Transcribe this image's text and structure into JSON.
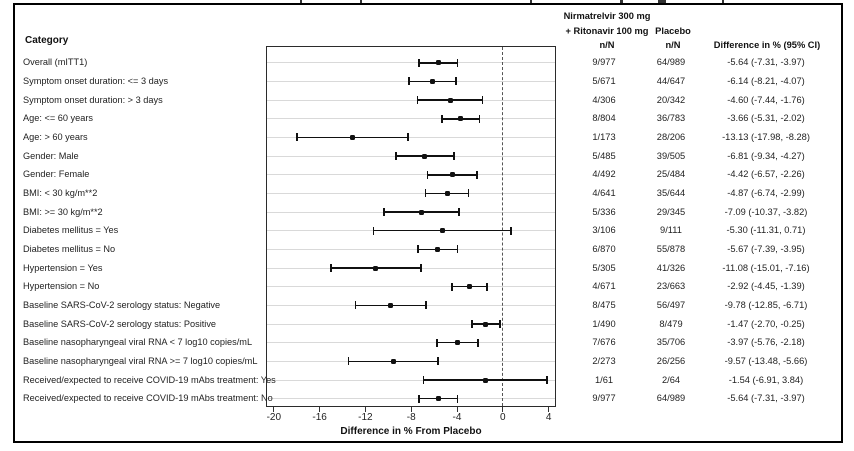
{
  "window": {
    "background": "#ffffff",
    "border_color": "#000000",
    "ink_color": "#111111"
  },
  "table": {
    "category_header": "Category",
    "treatment_header_line1": "Nirmatrelvir 300 mg",
    "treatment_header_line2": "+ Ritonavir 100 mg",
    "treatment_header_nN": "n/N",
    "placebo_header": "Placebo",
    "placebo_header_nN": "n/N",
    "difference_header": "Difference in % (95% CI)"
  },
  "chart_data": {
    "type": "forest",
    "xlabel": "Difference in % From Placebo",
    "x_ticks": [
      -20,
      -16,
      -12,
      -8,
      -4,
      0,
      4
    ],
    "xlim": [
      -20.7,
      4.7
    ],
    "reference_line_x": 0,
    "grid": "horizontal-per-row",
    "legend": "none",
    "marker_color": "#111111",
    "gridline_color": "#d9d9d9",
    "rows": [
      {
        "category": "Overall (mITT1)",
        "treatment_nN": "9/977",
        "placebo_nN": "64/989",
        "diff": -5.64,
        "ci_low": -7.31,
        "ci_high": -3.97,
        "diff_label": "-5.64 (-7.31, -3.97)"
      },
      {
        "category": "Symptom onset duration: <= 3 days",
        "treatment_nN": "5/671",
        "placebo_nN": "44/647",
        "diff": -6.14,
        "ci_low": -8.21,
        "ci_high": -4.07,
        "diff_label": "-6.14 (-8.21, -4.07)"
      },
      {
        "category": "Symptom onset duration: > 3 days",
        "treatment_nN": "4/306",
        "placebo_nN": "20/342",
        "diff": -4.6,
        "ci_low": -7.44,
        "ci_high": -1.76,
        "diff_label": "-4.60 (-7.44, -1.76)"
      },
      {
        "category": "Age: <= 60 years",
        "treatment_nN": "8/804",
        "placebo_nN": "36/783",
        "diff": -3.66,
        "ci_low": -5.31,
        "ci_high": -2.02,
        "diff_label": "-3.66 (-5.31, -2.02)"
      },
      {
        "category": "Age: > 60 years",
        "treatment_nN": "1/173",
        "placebo_nN": "28/206",
        "diff": -13.13,
        "ci_low": -17.98,
        "ci_high": -8.28,
        "diff_label": "-13.13 (-17.98, -8.28)"
      },
      {
        "category": "Gender: Male",
        "treatment_nN": "5/485",
        "placebo_nN": "39/505",
        "diff": -6.81,
        "ci_low": -9.34,
        "ci_high": -4.27,
        "diff_label": "-6.81 (-9.34, -4.27)"
      },
      {
        "category": "Gender: Female",
        "treatment_nN": "4/492",
        "placebo_nN": "25/484",
        "diff": -4.42,
        "ci_low": -6.57,
        "ci_high": -2.26,
        "diff_label": "-4.42 (-6.57, -2.26)"
      },
      {
        "category": "BMI: < 30 kg/m**2",
        "treatment_nN": "4/641",
        "placebo_nN": "35/644",
        "diff": -4.87,
        "ci_low": -6.74,
        "ci_high": -2.99,
        "diff_label": "-4.87 (-6.74, -2.99)"
      },
      {
        "category": "BMI: >= 30 kg/m**2",
        "treatment_nN": "5/336",
        "placebo_nN": "29/345",
        "diff": -7.09,
        "ci_low": -10.37,
        "ci_high": -3.82,
        "diff_label": "-7.09 (-10.37, -3.82)"
      },
      {
        "category": "Diabetes mellitus = Yes",
        "treatment_nN": "3/106",
        "placebo_nN": "9/111",
        "diff": -5.3,
        "ci_low": -11.31,
        "ci_high": 0.71,
        "diff_label": "-5.30 (-11.31, 0.71)"
      },
      {
        "category": "Diabetes mellitus = No",
        "treatment_nN": "6/870",
        "placebo_nN": "55/878",
        "diff": -5.67,
        "ci_low": -7.39,
        "ci_high": -3.95,
        "diff_label": "-5.67 (-7.39, -3.95)"
      },
      {
        "category": "Hypertension = Yes",
        "treatment_nN": "5/305",
        "placebo_nN": "41/326",
        "diff": -11.08,
        "ci_low": -15.01,
        "ci_high": -7.16,
        "diff_label": "-11.08 (-15.01, -7.16)"
      },
      {
        "category": "Hypertension = No",
        "treatment_nN": "4/671",
        "placebo_nN": "23/663",
        "diff": -2.92,
        "ci_low": -4.45,
        "ci_high": -1.39,
        "diff_label": "-2.92 (-4.45, -1.39)"
      },
      {
        "category": "Baseline SARS-CoV-2 serology status: Negative",
        "treatment_nN": "8/475",
        "placebo_nN": "56/497",
        "diff": -9.78,
        "ci_low": -12.85,
        "ci_high": -6.71,
        "diff_label": "-9.78 (-12.85, -6.71)"
      },
      {
        "category": "Baseline SARS-CoV-2 serology status: Positive",
        "treatment_nN": "1/490",
        "placebo_nN": "8/479",
        "diff": -1.47,
        "ci_low": -2.7,
        "ci_high": -0.25,
        "diff_label": "-1.47 (-2.70, -0.25)"
      },
      {
        "category": "Baseline nasopharyngeal viral RNA < 7 log10 copies/mL",
        "treatment_nN": "7/676",
        "placebo_nN": "35/706",
        "diff": -3.97,
        "ci_low": -5.76,
        "ci_high": -2.18,
        "diff_label": "-3.97 (-5.76, -2.18)"
      },
      {
        "category": "Baseline nasopharyngeal viral RNA >= 7 log10 copies/mL",
        "treatment_nN": "2/273",
        "placebo_nN": "26/256",
        "diff": -9.57,
        "ci_low": -13.48,
        "ci_high": -5.66,
        "diff_label": "-9.57 (-13.48, -5.66)"
      },
      {
        "category": "Received/expected to receive COVID-19 mAbs treatment: Yes",
        "treatment_nN": "1/61",
        "placebo_nN": "2/64",
        "diff": -1.54,
        "ci_low": -6.91,
        "ci_high": 3.84,
        "diff_label": "-1.54 (-6.91, 3.84)"
      },
      {
        "category": "Received/expected to receive COVID-19 mAbs treatment: No",
        "treatment_nN": "9/977",
        "placebo_nN": "64/989",
        "diff": -5.64,
        "ci_low": -7.31,
        "ci_high": -3.97,
        "diff_label": "-5.64 (-7.31, -3.97)"
      }
    ]
  }
}
